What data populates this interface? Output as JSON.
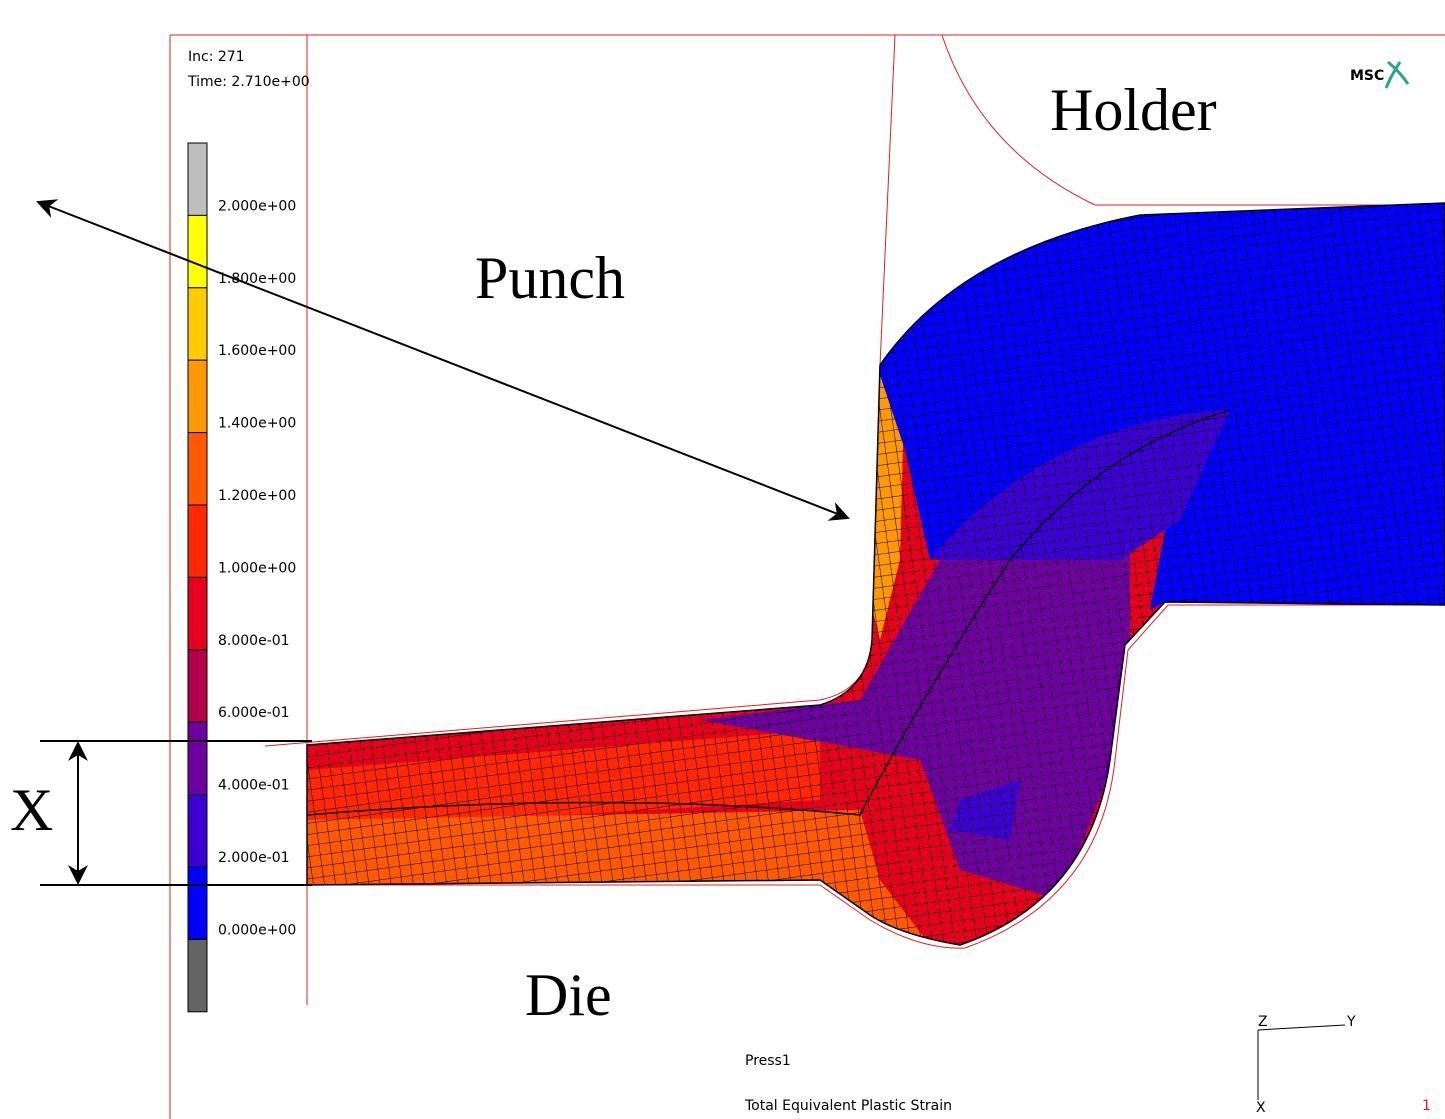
{
  "header": {
    "increment": "Inc:  271",
    "time": "Time:  2.710e+00",
    "logo": "MSC"
  },
  "legend": {
    "labels": [
      "2.000e+00",
      "1.800e+00",
      "1.600e+00",
      "1.400e+00",
      "1.200e+00",
      "1.000e+00",
      "8.000e-01",
      "6.000e-01",
      "4.000e-01",
      "2.000e-01",
      "0.000e+00"
    ],
    "colors": [
      "#bebebe",
      "#ffff00",
      "#ffcc00",
      "#ff9900",
      "#ff5a00",
      "#ff2800",
      "#e6001e",
      "#b4004b",
      "#6e00a0",
      "#3c00d2",
      "#0000ff",
      "#646464"
    ]
  },
  "annotations": {
    "holder": "Holder",
    "punch": "Punch",
    "die": "Die",
    "dimension": "X"
  },
  "footer": {
    "job": "Press1",
    "result": "Total Equivalent Plastic Strain",
    "page": "1"
  },
  "triad": {
    "z": "Z",
    "y": "Y",
    "x": "X"
  }
}
